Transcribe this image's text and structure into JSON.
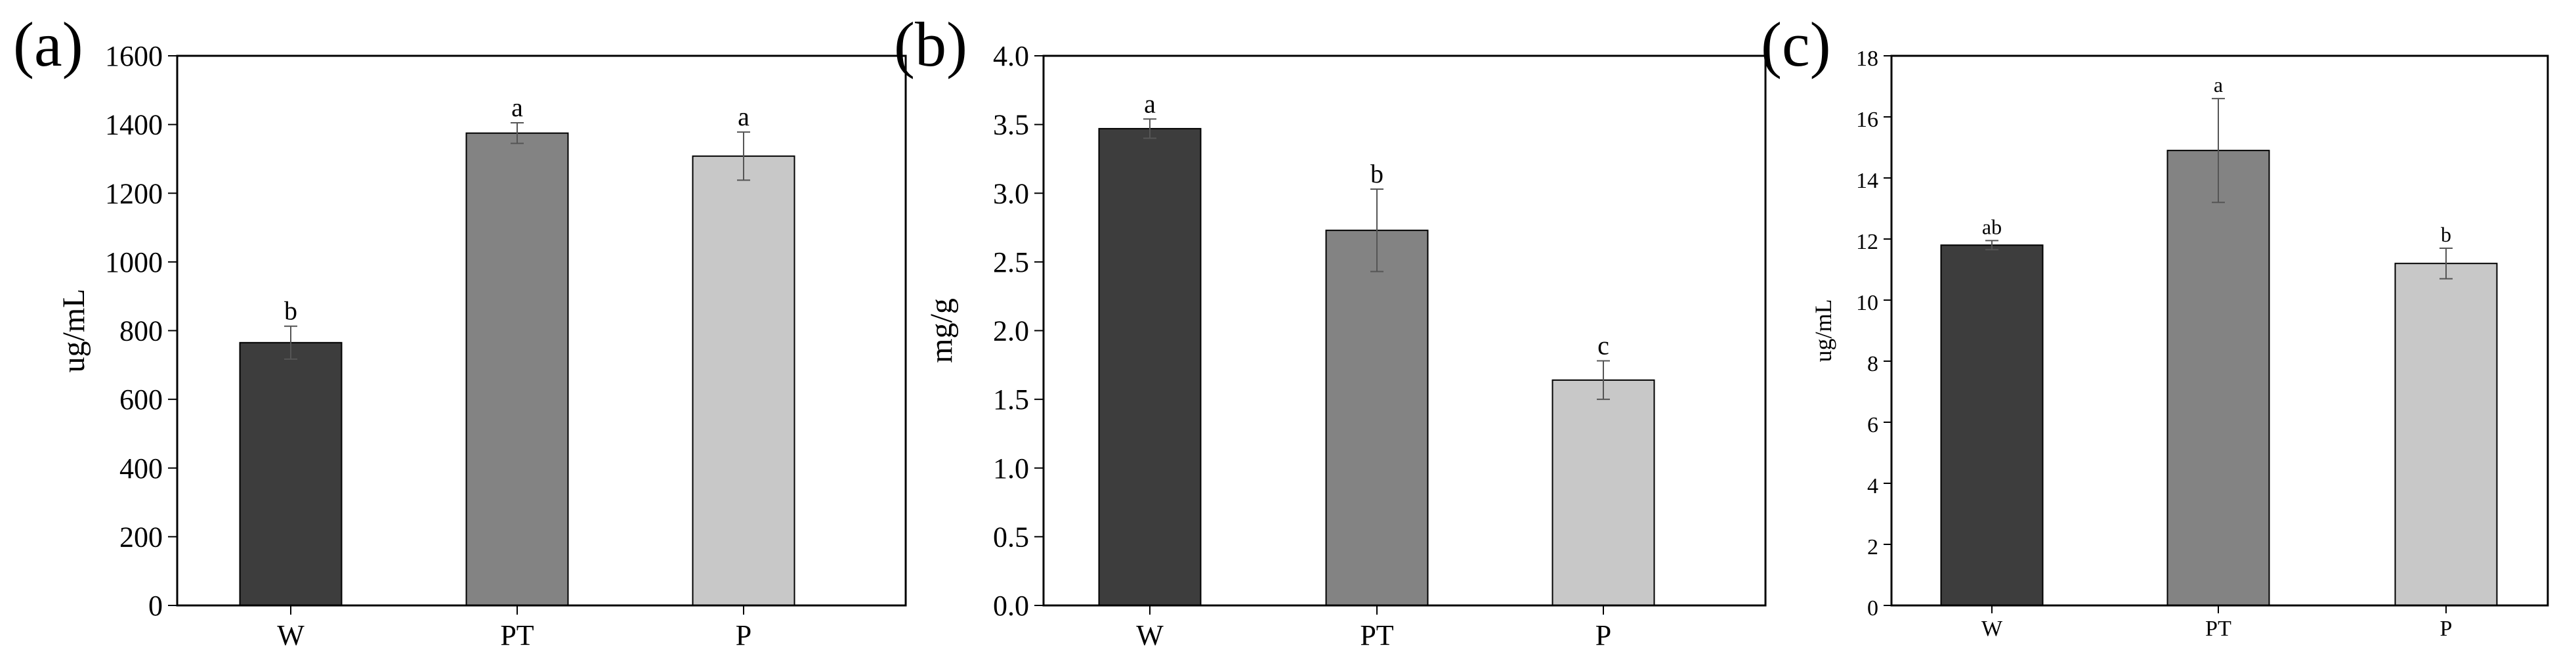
{
  "chart_data": [
    {
      "panel": "(a)",
      "type": "bar",
      "categories": [
        "W",
        "PT",
        "P"
      ],
      "values": [
        765,
        1375,
        1308
      ],
      "errors": [
        48,
        30,
        70
      ],
      "significance": [
        "b",
        "a",
        "a"
      ],
      "colors": [
        "#3d3d3d",
        "#838383",
        "#c8c8c8"
      ],
      "ylabel": "ug/mL",
      "xlabel": "",
      "ylim": [
        0,
        1600
      ],
      "yticks": [
        0,
        200,
        400,
        600,
        800,
        1000,
        1200,
        1400,
        1600
      ],
      "ytick_labels": [
        "0",
        "200",
        "400",
        "600",
        "800",
        "1000",
        "1200",
        "1400",
        "1600"
      ],
      "grid": false
    },
    {
      "panel": "(b)",
      "type": "bar",
      "categories": [
        "W",
        "PT",
        "P"
      ],
      "values": [
        3.47,
        2.73,
        1.64
      ],
      "errors": [
        0.07,
        0.3,
        0.14
      ],
      "significance": [
        "a",
        "b",
        "c"
      ],
      "colors": [
        "#3d3d3d",
        "#838383",
        "#c8c8c8"
      ],
      "ylabel": "mg/g",
      "xlabel": "",
      "ylim": [
        0,
        4.0
      ],
      "yticks": [
        0,
        0.5,
        1.0,
        1.5,
        2.0,
        2.5,
        3.0,
        3.5,
        4.0
      ],
      "ytick_labels": [
        "0.0",
        "0.5",
        "1.0",
        "1.5",
        "2.0",
        "2.5",
        "3.0",
        "3.5",
        "4.0"
      ],
      "grid": false
    },
    {
      "panel": "(c)",
      "type": "bar",
      "categories": [
        "W",
        "PT",
        "P"
      ],
      "values": [
        11.8,
        14.9,
        11.2
      ],
      "errors": [
        0.15,
        1.7,
        0.5
      ],
      "significance": [
        "ab",
        "a",
        "b"
      ],
      "colors": [
        "#3d3d3d",
        "#838383",
        "#c8c8c8"
      ],
      "ylabel": "ug/mL",
      "xlabel": "",
      "ylim": [
        0,
        18
      ],
      "yticks": [
        0,
        2,
        4,
        6,
        8,
        10,
        12,
        14,
        16,
        18
      ],
      "ytick_labels": [
        "0",
        "2",
        "4",
        "6",
        "8",
        "10",
        "12",
        "14",
        "16",
        "18"
      ],
      "grid": false
    }
  ]
}
